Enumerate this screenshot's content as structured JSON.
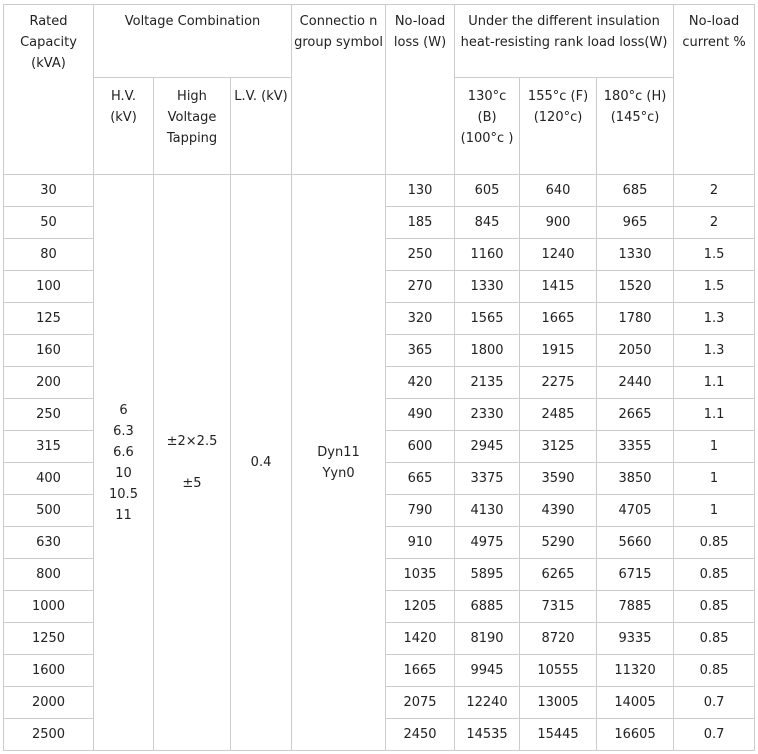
{
  "header": {
    "rated_capacity": "Rated Capacity (kVA)",
    "voltage_combination": "Voltage Combination",
    "hv": "H.V. (kV)",
    "tapping": "High Voltage Tapping",
    "lv": "L.V. (kV)",
    "connection": "Connectio n group symbol",
    "no_load_loss": "No-load loss (W)",
    "load_loss": "Under the different insulation heat-resisting rank load loss(W)",
    "class_b": "130°c (B) (100°c )",
    "class_f": "155°c (F) (120°c)",
    "class_h": "180°c (H) (145°c)",
    "no_load_current": "No-load current %"
  },
  "merged": {
    "hv": [
      "6",
      "6.3",
      "6.6",
      "10",
      "10.5",
      "11"
    ],
    "tapping": [
      "±2×2.5",
      "",
      "±5"
    ],
    "lv": "0.4",
    "connection": [
      "Dyn11",
      "Yyn0"
    ]
  },
  "rows": [
    [
      "30",
      "130",
      "605",
      "640",
      "685",
      "2"
    ],
    [
      "50",
      "185",
      "845",
      "900",
      "965",
      "2"
    ],
    [
      "80",
      "250",
      "1160",
      "1240",
      "1330",
      "1.5"
    ],
    [
      "100",
      "270",
      "1330",
      "1415",
      "1520",
      "1.5"
    ],
    [
      "125",
      "320",
      "1565",
      "1665",
      "1780",
      "1.3"
    ],
    [
      "160",
      "365",
      "1800",
      "1915",
      "2050",
      "1.3"
    ],
    [
      "200",
      "420",
      "2135",
      "2275",
      "2440",
      "1.1"
    ],
    [
      "250",
      "490",
      "2330",
      "2485",
      "2665",
      "1.1"
    ],
    [
      "315",
      "600",
      "2945",
      "3125",
      "3355",
      "1"
    ],
    [
      "400",
      "665",
      "3375",
      "3590",
      "3850",
      "1"
    ],
    [
      "500",
      "790",
      "4130",
      "4390",
      "4705",
      "1"
    ],
    [
      "630",
      "910",
      "4975",
      "5290",
      "5660",
      "0.85"
    ],
    [
      "800",
      "1035",
      "5895",
      "6265",
      "6715",
      "0.85"
    ],
    [
      "1000",
      "1205",
      "6885",
      "7315",
      "7885",
      "0.85"
    ],
    [
      "1250",
      "1420",
      "8190",
      "8720",
      "9335",
      "0.85"
    ],
    [
      "1600",
      "1665",
      "9945",
      "10555",
      "11320",
      "0.85"
    ],
    [
      "2000",
      "2075",
      "12240",
      "13005",
      "14005",
      "0.7"
    ],
    [
      "2500",
      "2450",
      "14535",
      "15445",
      "16605",
      "0.7"
    ]
  ]
}
